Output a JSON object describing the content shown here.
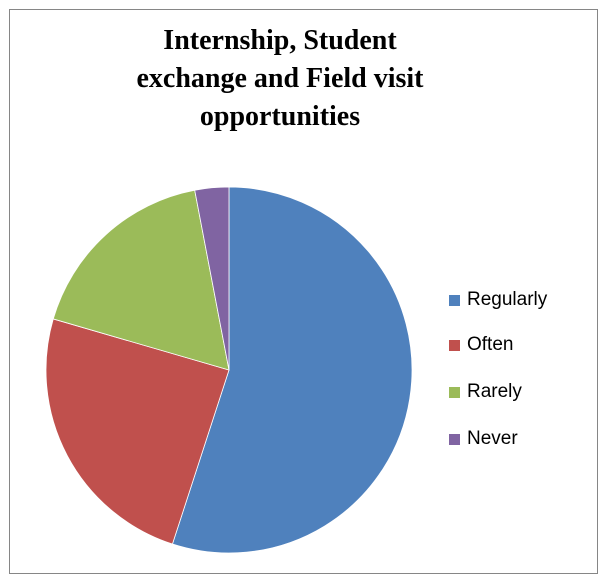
{
  "chart_data": {
    "type": "pie",
    "title": "Internship, Student\nexchange and Field visit\nopportunities",
    "categories": [
      "Regularly",
      "Often",
      "Rarely",
      "Never"
    ],
    "values": [
      55,
      24.5,
      17.5,
      3
    ],
    "colors": [
      "#4F81BD",
      "#C0504D",
      "#9BBB59",
      "#8064A2"
    ],
    "start_angle_deg": 0,
    "direction": "clockwise",
    "legend_position": "right"
  }
}
